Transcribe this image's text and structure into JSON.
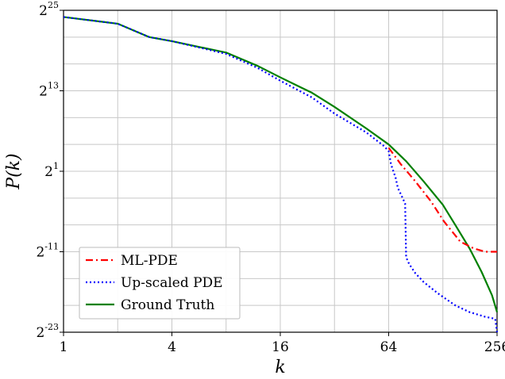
{
  "chart_data": {
    "type": "line",
    "title": "",
    "xlabel": "k",
    "ylabel": "P(k)",
    "x_scale": "log2",
    "y_scale": "log2",
    "xlim": [
      1,
      256
    ],
    "ylim_exponent": [
      -23,
      25
    ],
    "grid": true,
    "legend_position": "bottom-left",
    "x_ticks": [
      {
        "value": 1,
        "label": "1"
      },
      {
        "value": 4,
        "label": "4"
      },
      {
        "value": 16,
        "label": "16"
      },
      {
        "value": 64,
        "label": "64"
      },
      {
        "value": 256,
        "label": "256"
      }
    ],
    "y_ticks": [
      {
        "exp": 25,
        "base": "2",
        "sup": "25"
      },
      {
        "exp": 13,
        "base": "2",
        "sup": "13"
      },
      {
        "exp": 1,
        "base": "2",
        "sup": "1"
      },
      {
        "exp": -11,
        "base": "2",
        "sup": "-11"
      },
      {
        "exp": -23,
        "base": "2",
        "sup": "-23"
      }
    ],
    "series": [
      {
        "name": "ML-PDE",
        "color": "#ff0000",
        "dash": "dashdot",
        "x": [
          64,
          75,
          90,
          110,
          130,
          160,
          190,
          220,
          256
        ],
        "y_exp": [
          4.5,
          2.0,
          -0.5,
          -3.5,
          -6.5,
          -9.5,
          -10.5,
          -11.0,
          -11.0
        ]
      },
      {
        "name": "Up-scaled PDE",
        "color": "#0000ff",
        "dash": "dotted",
        "x": [
          1,
          2,
          3,
          4,
          6,
          8,
          12,
          16,
          24,
          32,
          48,
          60,
          64,
          66,
          70,
          72,
          75,
          79,
          80,
          82,
          84,
          90,
          100,
          120,
          150,
          180,
          220,
          250,
          256
        ],
        "y_exp": [
          24,
          23,
          21,
          20.4,
          19.3,
          18.5,
          16.4,
          14.5,
          12.0,
          9.6,
          6.8,
          4.8,
          4.0,
          2.0,
          0.0,
          -1.5,
          -2.5,
          -3.8,
          -11.8,
          -12.5,
          -13.0,
          -14.2,
          -15.5,
          -17.2,
          -19.0,
          -20.0,
          -20.7,
          -21.0,
          -23.0
        ]
      },
      {
        "name": "Ground Truth",
        "color": "#008000",
        "dash": "solid",
        "x": [
          1,
          2,
          3,
          4,
          6,
          8,
          12,
          16,
          24,
          32,
          48,
          64,
          80,
          100,
          128,
          150,
          180,
          210,
          240,
          256
        ],
        "y_exp": [
          24,
          23,
          21,
          20.4,
          19.4,
          18.7,
          16.7,
          15.0,
          12.7,
          10.6,
          7.4,
          5.0,
          2.5,
          -0.5,
          -4.0,
          -7.0,
          -10.5,
          -14.0,
          -17.5,
          -20.0
        ]
      }
    ]
  }
}
